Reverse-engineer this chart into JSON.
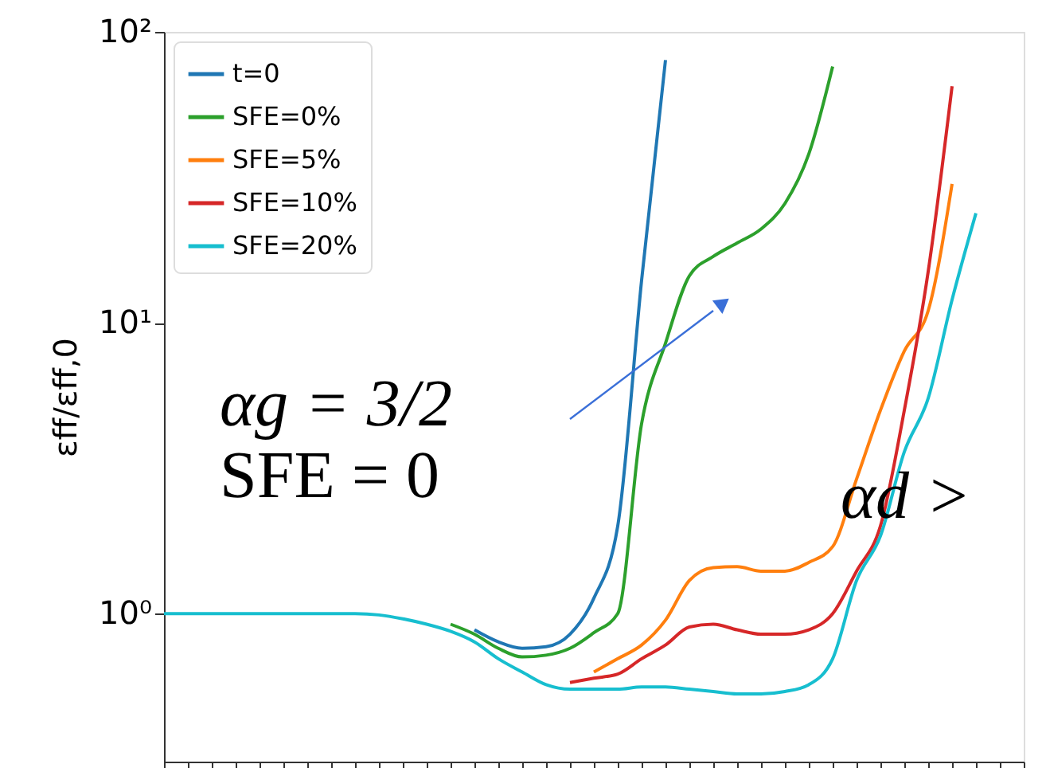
{
  "chart_data": {
    "type": "line",
    "ylabel": "εff/εff,0",
    "categories": [
      null,
      null,
      null,
      null,
      null,
      null,
      null,
      null,
      null,
      null,
      null,
      null,
      null,
      null,
      null,
      null,
      null,
      null,
      null,
      null,
      null,
      null,
      null,
      null,
      null,
      null,
      null,
      null,
      null,
      null,
      null,
      null,
      null,
      null,
      null,
      null,
      null
    ],
    "series": [
      {
        "name": "t=0",
        "color": "#1f77b4",
        "values": [
          null,
          null,
          null,
          null,
          null,
          null,
          null,
          null,
          null,
          null,
          null,
          null,
          null,
          0.88,
          0.8,
          0.76,
          0.77,
          0.85,
          1.13,
          2.0,
          14,
          80,
          null,
          null,
          null,
          null,
          null,
          null,
          null,
          null,
          null,
          null,
          null,
          null,
          null,
          null,
          null
        ]
      },
      {
        "name": "SFE=0%",
        "color": "#2ca02c",
        "values": [
          null,
          null,
          null,
          null,
          null,
          null,
          null,
          null,
          null,
          null,
          null,
          null,
          0.92,
          0.85,
          0.76,
          0.71,
          0.72,
          0.76,
          0.86,
          1.0,
          4.5,
          8.5,
          14.5,
          16.9,
          18.8,
          21,
          25.7,
          38,
          76,
          null,
          null,
          null,
          null,
          null,
          null,
          null,
          null
        ]
      },
      {
        "name": "SFE=5%",
        "color": "#ff7f0e",
        "values": [
          null,
          null,
          null,
          null,
          null,
          null,
          null,
          null,
          null,
          null,
          null,
          null,
          null,
          null,
          null,
          null,
          null,
          null,
          0.63,
          0.7,
          0.78,
          0.95,
          1.3,
          1.44,
          1.45,
          1.4,
          1.4,
          1.5,
          1.7,
          2.9,
          5.0,
          8.0,
          11,
          30,
          null,
          null,
          null
        ]
      },
      {
        "name": "SFE=10%",
        "color": "#d62728",
        "values": [
          null,
          null,
          null,
          null,
          null,
          null,
          null,
          null,
          null,
          null,
          null,
          null,
          null,
          null,
          null,
          null,
          null,
          0.58,
          0.6,
          0.62,
          0.7,
          0.78,
          0.9,
          0.92,
          0.88,
          0.85,
          0.85,
          0.88,
          1.0,
          1.4,
          2.0,
          5.0,
          15,
          65,
          null,
          null,
          null
        ]
      },
      {
        "name": "SFE=20%",
        "color": "#17becf",
        "values": [
          1,
          1,
          1,
          1,
          1,
          1,
          1,
          1,
          1,
          0.99,
          0.96,
          0.92,
          0.87,
          0.8,
          0.7,
          0.63,
          0.57,
          0.55,
          0.55,
          0.55,
          0.56,
          0.56,
          0.55,
          0.54,
          0.53,
          0.53,
          0.54,
          0.57,
          0.7,
          1.3,
          1.85,
          3.6,
          5.5,
          12,
          23.8,
          null,
          null
        ]
      }
    ],
    "log": "y",
    "ylim": [
      0.31,
      100
    ],
    "yticks": [
      {
        "value": 1,
        "label": "10⁰"
      },
      {
        "value": 10,
        "label": "10¹"
      },
      {
        "value": 100,
        "label": "10²"
      }
    ],
    "tick_labels": "y",
    "grid": false,
    "legend": "top left",
    "line_style": "solid",
    "marker": "none",
    "annotations": [
      "αg = 3/2",
      "SFE = 0",
      "αd >"
    ]
  }
}
